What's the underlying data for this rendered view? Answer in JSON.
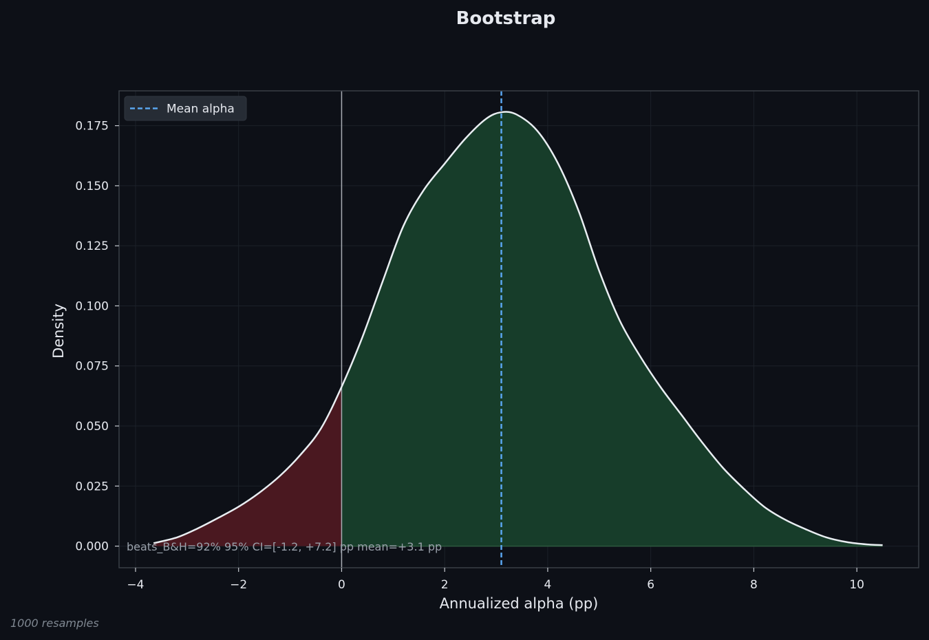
{
  "chart_data": {
    "type": "area",
    "title": "Bootstrap",
    "xlabel": "Annualized alpha (pp)",
    "ylabel": "Density",
    "xlim": [
      -4.32,
      11.2
    ],
    "ylim": [
      -0.009,
      0.1895
    ],
    "x_ticks": [
      -4,
      -2,
      0,
      2,
      4,
      6,
      8,
      10
    ],
    "x_tick_labels": [
      "−4",
      "−2",
      "0",
      "2",
      "4",
      "6",
      "8",
      "10"
    ],
    "y_ticks": [
      0.0,
      0.025,
      0.05,
      0.075,
      0.1,
      0.125,
      0.15,
      0.175
    ],
    "y_tick_labels": [
      "0.000",
      "0.025",
      "0.050",
      "0.075",
      "0.100",
      "0.125",
      "0.150",
      "0.175"
    ],
    "grid": true,
    "series": [
      {
        "x": [
          -3.65,
          -3.2,
          -2.8,
          -2.4,
          -2.0,
          -1.6,
          -1.2,
          -0.8,
          -0.4,
          0.0,
          0.4,
          0.8,
          1.2,
          1.6,
          2.0,
          2.4,
          2.8,
          3.1,
          3.4,
          3.8,
          4.2,
          4.6,
          5.0,
          5.4,
          5.8,
          6.2,
          6.6,
          7.0,
          7.4,
          7.8,
          8.2,
          8.6,
          9.0,
          9.4,
          9.8,
          10.2,
          10.5
        ],
        "y": [
          0.0012,
          0.0036,
          0.0073,
          0.0117,
          0.0164,
          0.0222,
          0.0292,
          0.038,
          0.049,
          0.0663,
          0.0868,
          0.1104,
          0.1333,
          0.1484,
          0.1592,
          0.1696,
          0.1778,
          0.1806,
          0.1796,
          0.1728,
          0.1593,
          0.1395,
          0.1145,
          0.0938,
          0.0788,
          0.0659,
          0.0545,
          0.0431,
          0.0326,
          0.024,
          0.0164,
          0.0111,
          0.0071,
          0.0037,
          0.0017,
          0.0007,
          0.0004
        ]
      }
    ],
    "split_x": 0,
    "mean_line": {
      "name": "Mean alpha",
      "x": 3.1
    },
    "legend": {
      "placement": "top-left"
    },
    "annotation": "beats_B&H=92%  95% CI=[-1.2, +7.2] pp  mean=+3.1 pp",
    "footnote": "1000 resamples",
    "colors": {
      "background": "#0d1017",
      "curve": "#e9eef2",
      "fill_negative": "#4a1820",
      "fill_positive": "#173d2a",
      "mean_line": "#5aa6f0",
      "zero_line": "#a9aeb5",
      "frame": "#3a3f47",
      "grid": "#1c2129",
      "legend_bg": "#262c35"
    }
  }
}
